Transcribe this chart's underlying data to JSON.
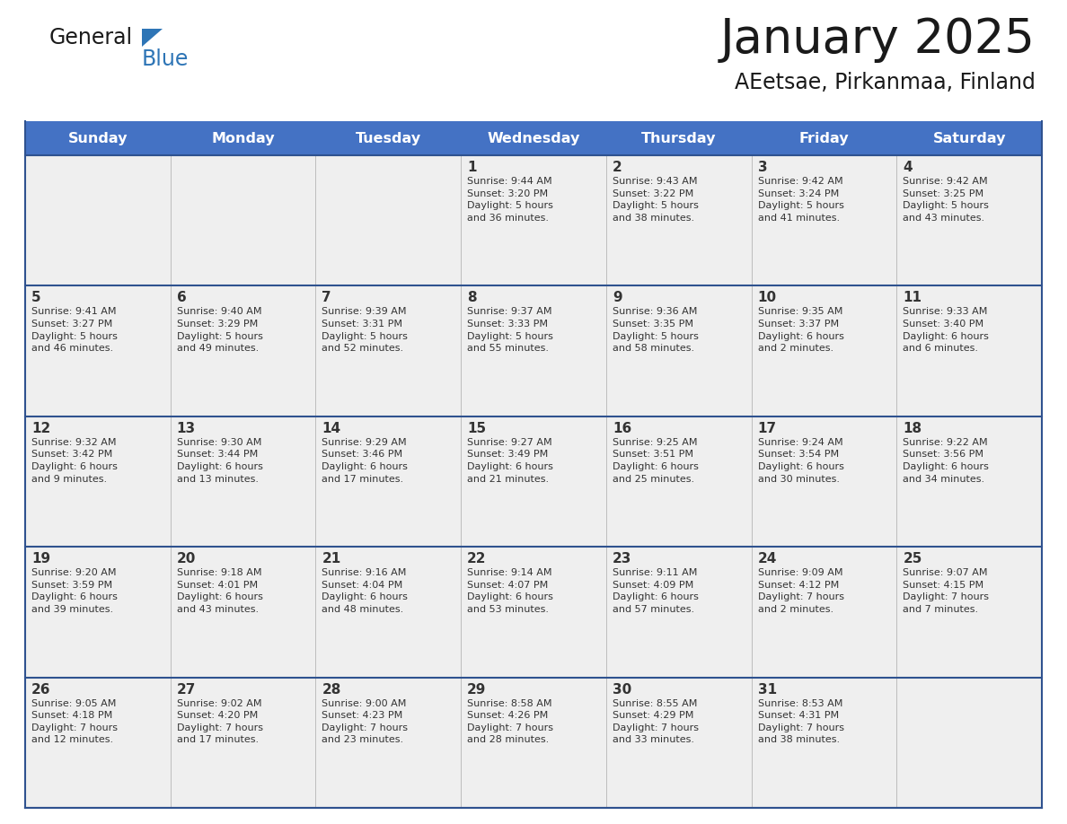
{
  "title": "January 2025",
  "subtitle": "AEetsae, Pirkanmaa, Finland",
  "days_of_week": [
    "Sunday",
    "Monday",
    "Tuesday",
    "Wednesday",
    "Thursday",
    "Friday",
    "Saturday"
  ],
  "header_bg": "#4472C4",
  "header_text": "#FFFFFF",
  "cell_bg": "#EFEFEF",
  "cell_bg_white": "#FFFFFF",
  "row_border_color": "#3B5998",
  "day_number_color": "#333333",
  "cell_text_color": "#333333",
  "title_color": "#1A1A1A",
  "subtitle_color": "#1A1A1A",
  "logo_general_color": "#1A1A1A",
  "logo_blue_color": "#2E75B6",
  "weeks": [
    [
      {
        "day": null,
        "info": ""
      },
      {
        "day": null,
        "info": ""
      },
      {
        "day": null,
        "info": ""
      },
      {
        "day": 1,
        "info": "Sunrise: 9:44 AM\nSunset: 3:20 PM\nDaylight: 5 hours\nand 36 minutes."
      },
      {
        "day": 2,
        "info": "Sunrise: 9:43 AM\nSunset: 3:22 PM\nDaylight: 5 hours\nand 38 minutes."
      },
      {
        "day": 3,
        "info": "Sunrise: 9:42 AM\nSunset: 3:24 PM\nDaylight: 5 hours\nand 41 minutes."
      },
      {
        "day": 4,
        "info": "Sunrise: 9:42 AM\nSunset: 3:25 PM\nDaylight: 5 hours\nand 43 minutes."
      }
    ],
    [
      {
        "day": 5,
        "info": "Sunrise: 9:41 AM\nSunset: 3:27 PM\nDaylight: 5 hours\nand 46 minutes."
      },
      {
        "day": 6,
        "info": "Sunrise: 9:40 AM\nSunset: 3:29 PM\nDaylight: 5 hours\nand 49 minutes."
      },
      {
        "day": 7,
        "info": "Sunrise: 9:39 AM\nSunset: 3:31 PM\nDaylight: 5 hours\nand 52 minutes."
      },
      {
        "day": 8,
        "info": "Sunrise: 9:37 AM\nSunset: 3:33 PM\nDaylight: 5 hours\nand 55 minutes."
      },
      {
        "day": 9,
        "info": "Sunrise: 9:36 AM\nSunset: 3:35 PM\nDaylight: 5 hours\nand 58 minutes."
      },
      {
        "day": 10,
        "info": "Sunrise: 9:35 AM\nSunset: 3:37 PM\nDaylight: 6 hours\nand 2 minutes."
      },
      {
        "day": 11,
        "info": "Sunrise: 9:33 AM\nSunset: 3:40 PM\nDaylight: 6 hours\nand 6 minutes."
      }
    ],
    [
      {
        "day": 12,
        "info": "Sunrise: 9:32 AM\nSunset: 3:42 PM\nDaylight: 6 hours\nand 9 minutes."
      },
      {
        "day": 13,
        "info": "Sunrise: 9:30 AM\nSunset: 3:44 PM\nDaylight: 6 hours\nand 13 minutes."
      },
      {
        "day": 14,
        "info": "Sunrise: 9:29 AM\nSunset: 3:46 PM\nDaylight: 6 hours\nand 17 minutes."
      },
      {
        "day": 15,
        "info": "Sunrise: 9:27 AM\nSunset: 3:49 PM\nDaylight: 6 hours\nand 21 minutes."
      },
      {
        "day": 16,
        "info": "Sunrise: 9:25 AM\nSunset: 3:51 PM\nDaylight: 6 hours\nand 25 minutes."
      },
      {
        "day": 17,
        "info": "Sunrise: 9:24 AM\nSunset: 3:54 PM\nDaylight: 6 hours\nand 30 minutes."
      },
      {
        "day": 18,
        "info": "Sunrise: 9:22 AM\nSunset: 3:56 PM\nDaylight: 6 hours\nand 34 minutes."
      }
    ],
    [
      {
        "day": 19,
        "info": "Sunrise: 9:20 AM\nSunset: 3:59 PM\nDaylight: 6 hours\nand 39 minutes."
      },
      {
        "day": 20,
        "info": "Sunrise: 9:18 AM\nSunset: 4:01 PM\nDaylight: 6 hours\nand 43 minutes."
      },
      {
        "day": 21,
        "info": "Sunrise: 9:16 AM\nSunset: 4:04 PM\nDaylight: 6 hours\nand 48 minutes."
      },
      {
        "day": 22,
        "info": "Sunrise: 9:14 AM\nSunset: 4:07 PM\nDaylight: 6 hours\nand 53 minutes."
      },
      {
        "day": 23,
        "info": "Sunrise: 9:11 AM\nSunset: 4:09 PM\nDaylight: 6 hours\nand 57 minutes."
      },
      {
        "day": 24,
        "info": "Sunrise: 9:09 AM\nSunset: 4:12 PM\nDaylight: 7 hours\nand 2 minutes."
      },
      {
        "day": 25,
        "info": "Sunrise: 9:07 AM\nSunset: 4:15 PM\nDaylight: 7 hours\nand 7 minutes."
      }
    ],
    [
      {
        "day": 26,
        "info": "Sunrise: 9:05 AM\nSunset: 4:18 PM\nDaylight: 7 hours\nand 12 minutes."
      },
      {
        "day": 27,
        "info": "Sunrise: 9:02 AM\nSunset: 4:20 PM\nDaylight: 7 hours\nand 17 minutes."
      },
      {
        "day": 28,
        "info": "Sunrise: 9:00 AM\nSunset: 4:23 PM\nDaylight: 7 hours\nand 23 minutes."
      },
      {
        "day": 29,
        "info": "Sunrise: 8:58 AM\nSunset: 4:26 PM\nDaylight: 7 hours\nand 28 minutes."
      },
      {
        "day": 30,
        "info": "Sunrise: 8:55 AM\nSunset: 4:29 PM\nDaylight: 7 hours\nand 33 minutes."
      },
      {
        "day": 31,
        "info": "Sunrise: 8:53 AM\nSunset: 4:31 PM\nDaylight: 7 hours\nand 38 minutes."
      },
      {
        "day": null,
        "info": ""
      }
    ]
  ]
}
